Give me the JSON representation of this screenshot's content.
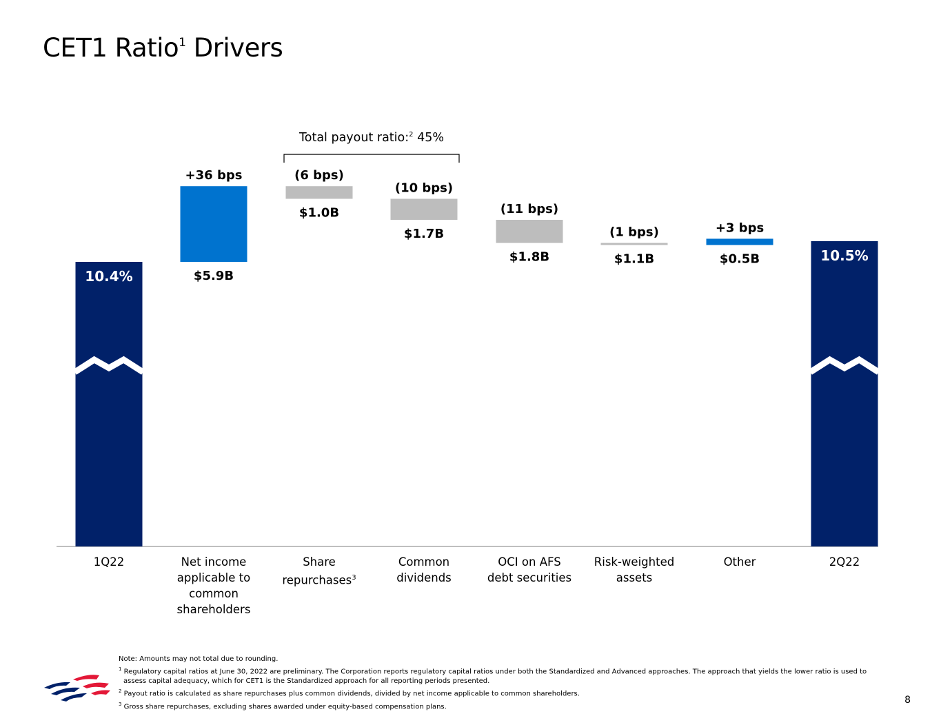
{
  "page": {
    "title": "CET1 Ratio",
    "title_sup": "1",
    "title_suffix": " Drivers",
    "page_number": "8"
  },
  "payout_note": {
    "label": "Total payout ratio:",
    "sup": "2",
    "value": " 45%"
  },
  "chart_data": {
    "type": "bar",
    "subtype": "waterfall",
    "axis_break": true,
    "categories": [
      "1Q22",
      "Net income applicable to common shareholders",
      "Share repurchases",
      "Common dividends",
      "OCI on AFS debt securities",
      "Risk-weighted assets",
      "Other",
      "2Q22"
    ],
    "category_sups": [
      "",
      "",
      "3",
      "",
      "",
      "",
      "",
      ""
    ],
    "category_lines": [
      [
        "1Q22"
      ],
      [
        "Net income",
        "applicable to",
        "common",
        "shareholders"
      ],
      [
        "Share",
        "repurchases"
      ],
      [
        "Common",
        "dividends"
      ],
      [
        "OCI on AFS",
        "debt securities"
      ],
      [
        "Risk-weighted",
        "assets"
      ],
      [
        "Other"
      ],
      [
        "2Q22"
      ]
    ],
    "units": "bps",
    "start_value_pct": 10.4,
    "end_value_pct": 10.5,
    "changes_bps": [
      36,
      -6,
      -10,
      -11,
      -1,
      3
    ],
    "totals_labels": [
      "10.4%",
      "10.5%"
    ],
    "change_labels": [
      "+36 bps",
      "(6 bps)",
      "(10 bps)",
      "(11 bps)",
      "(1 bps)",
      "+3 bps"
    ],
    "dollar_labels": [
      "$5.9B",
      "$1.0B",
      "$1.7B",
      "$1.8B",
      "$1.1B",
      "$0.5B"
    ],
    "colors": {
      "total": "#012169",
      "increase": "#0073CF",
      "decrease": "#BDBDBD",
      "axis": "#7F7F7F",
      "total_label": "#FFFFFF",
      "label": "#000000"
    }
  },
  "footnotes": {
    "note": "Note: Amounts may not total due to rounding.",
    "items": [
      {
        "sup": "1",
        "text": " Regulatory capital ratios at June 30, 2022 are preliminary. The Corporation reports regulatory capital ratios under both the Standardized and Advanced approaches. The approach that yields the lower ratio is used to assess capital adequacy, which for CET1 is the Standardized approach for all reporting periods presented."
      },
      {
        "sup": "2",
        "text": " Payout ratio is calculated as share repurchases plus common dividends, divided by net income applicable to common shareholders."
      },
      {
        "sup": "3",
        "text": " Gross share repurchases, excluding shares awarded under equity-based compensation plans."
      }
    ]
  },
  "logo": {
    "name": "flag-logo-icon",
    "colors": {
      "red": "#E31837",
      "blue": "#012169"
    }
  }
}
